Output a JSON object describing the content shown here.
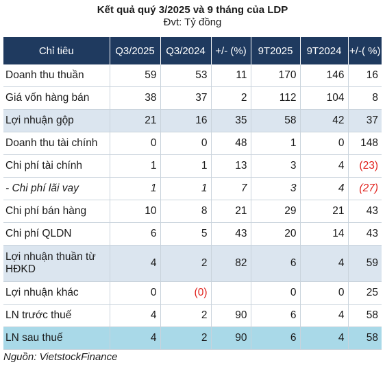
{
  "title": "Kết quả quý 3/2025 và 9 tháng của LDP",
  "subtitle": "Đvt: Tỷ đồng",
  "headers": [
    "Chỉ tiêu",
    "Q3/2025",
    "Q3/2024",
    "+/- (%)",
    "9T2025",
    "9T2024",
    "+/-( %)"
  ],
  "rows": [
    {
      "label": "Doanh thu thuần",
      "values": [
        "59",
        "53",
        "11",
        "170",
        "146",
        "16"
      ],
      "style": ""
    },
    {
      "label": "Giá vốn hàng bán",
      "values": [
        "38",
        "37",
        "2",
        "112",
        "104",
        "8"
      ],
      "style": ""
    },
    {
      "label": "Lợi nhuận gộp",
      "values": [
        "21",
        "16",
        "35",
        "58",
        "42",
        "37"
      ],
      "style": "light"
    },
    {
      "label": "Doanh thu tài chính",
      "values": [
        "0",
        "0",
        "48",
        "1",
        "0",
        "148"
      ],
      "style": ""
    },
    {
      "label": "Chi phí tài chính",
      "values": [
        "1",
        "1",
        "13",
        "3",
        "4",
        "(23)"
      ],
      "style": ""
    },
    {
      "label": "- Chi phí lãi vay",
      "values": [
        "1",
        "1",
        "7",
        "3",
        "4",
        "(27)"
      ],
      "style": "italic"
    },
    {
      "label": "Chi phí bán hàng",
      "values": [
        "10",
        "8",
        "21",
        "29",
        "21",
        "43"
      ],
      "style": ""
    },
    {
      "label": "Chi phí QLDN",
      "values": [
        "6",
        "5",
        "43",
        "20",
        "14",
        "43"
      ],
      "style": ""
    },
    {
      "label": "Lợi nhuận thuần từ HĐKD",
      "values": [
        "4",
        "2",
        "82",
        "6",
        "4",
        "59"
      ],
      "style": "light tall"
    },
    {
      "label": "Lợi nhuận khác",
      "values": [
        "0",
        "(0)",
        "",
        "0",
        "0",
        "25"
      ],
      "style": ""
    },
    {
      "label": "LN trước thuế",
      "values": [
        "4",
        "2",
        "90",
        "6",
        "4",
        "58"
      ],
      "style": ""
    },
    {
      "label": "LN sau thuế",
      "values": [
        "4",
        "2",
        "90",
        "6",
        "4",
        "58"
      ],
      "style": "cyan"
    }
  ],
  "source": "Nguồn: VietstockFinance",
  "colors": {
    "header_bg": "#1f3a5f",
    "highlight_row": "#dbe5ef",
    "final_row": "#a9d9e8",
    "negative": "#e0201b"
  }
}
